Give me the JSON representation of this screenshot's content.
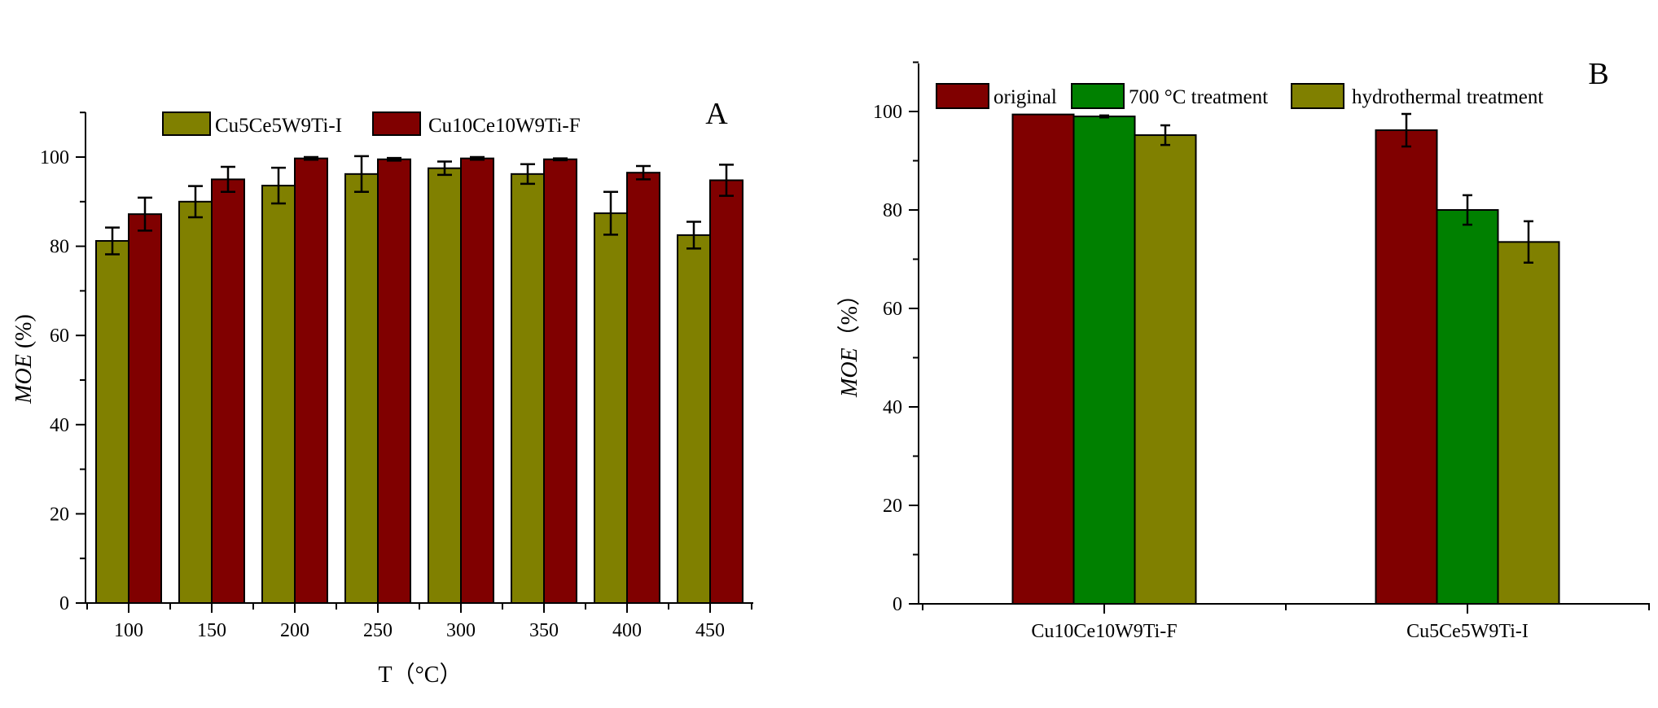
{
  "colors": {
    "olive": "#808000",
    "darkred": "#800000",
    "green": "#008000"
  },
  "chart_data": [
    {
      "panel": "A",
      "type": "bar",
      "xlabel": "T（°C）",
      "ylabel_italic": "MOE",
      "ylabel_rest": " (%)",
      "ylim": [
        0,
        110
      ],
      "yticks": [
        0,
        20,
        40,
        60,
        80,
        100
      ],
      "categories": [
        "100",
        "150",
        "200",
        "250",
        "300",
        "350",
        "400",
        "450"
      ],
      "legend_position": "top-center",
      "series": [
        {
          "name": "Cu5Ce5W9Ti-I",
          "color": "#808000",
          "values": [
            81.2,
            90.0,
            93.6,
            96.2,
            97.5,
            96.2,
            87.4,
            82.5
          ],
          "errors": [
            3.0,
            3.5,
            4.0,
            4.0,
            1.5,
            2.2,
            4.8,
            3.0
          ]
        },
        {
          "name": "Cu10Ce10W9Ti-F",
          "color": "#800000",
          "values": [
            87.2,
            95.0,
            99.7,
            99.5,
            99.7,
            99.5,
            96.5,
            94.8
          ],
          "errors": [
            3.7,
            2.8,
            0.3,
            0.3,
            0.3,
            0.2,
            1.5,
            3.5
          ]
        }
      ]
    },
    {
      "panel": "B",
      "type": "bar",
      "xlabel": "",
      "ylabel_italic": "MOE",
      "ylabel_rest": "（%）",
      "ylim": [
        0,
        110
      ],
      "yticks": [
        0,
        20,
        40,
        60,
        80,
        100
      ],
      "categories": [
        "Cu10Ce10W9Ti-F",
        "Cu5Ce5W9Ti-I"
      ],
      "legend_position": "top",
      "series": [
        {
          "name": "original",
          "color": "#800000",
          "values": [
            99.4,
            96.2
          ],
          "errors": [
            0.0,
            3.3
          ]
        },
        {
          "name": "700 °C  treatment",
          "color": "#008000",
          "values": [
            99.0,
            80.0
          ],
          "errors": [
            0.2,
            3.0
          ]
        },
        {
          "name": "hydrothermal treatment",
          "color": "#808000",
          "values": [
            95.2,
            73.5
          ],
          "errors": [
            2.0,
            4.2
          ]
        }
      ]
    }
  ]
}
